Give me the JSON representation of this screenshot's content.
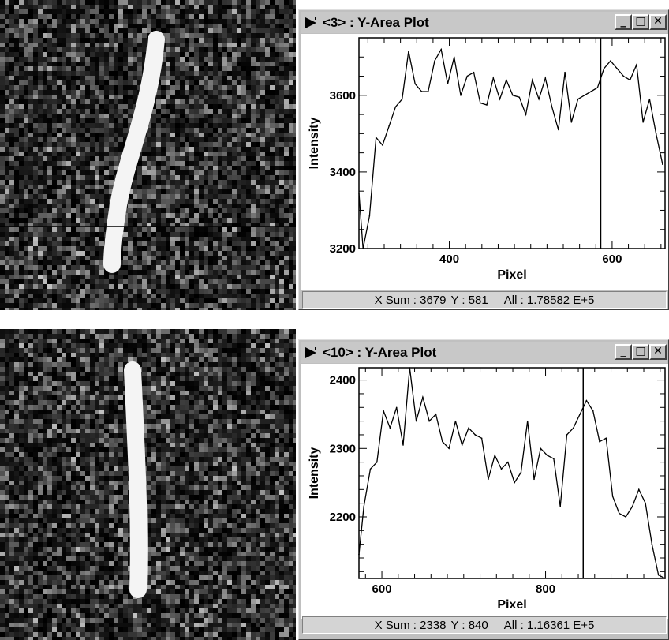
{
  "windows": [
    {
      "title": "<3> :  Y-Area Plot",
      "minimize_label": "_",
      "maximize_label": "□",
      "close_label": "✕",
      "status": {
        "xsum": "X Sum : 3679",
        "y": "Y : 581",
        "all": "All : 1.78582 E+5"
      },
      "cursor_x": 586,
      "chart_data": {
        "type": "line",
        "xlabel": "Pixel",
        "ylabel": "Intensity",
        "xlim": [
          289,
          665
        ],
        "ylim": [
          3200,
          3750
        ],
        "xticks": [
          400,
          600
        ],
        "yticks": [
          3200,
          3400,
          3600
        ],
        "x": [
          289,
          294,
          302,
          310,
          318,
          326,
          334,
          342,
          350,
          358,
          366,
          374,
          382,
          390,
          398,
          406,
          414,
          422,
          430,
          438,
          446,
          454,
          462,
          470,
          478,
          486,
          494,
          502,
          510,
          518,
          526,
          534,
          542,
          550,
          558,
          566,
          574,
          582,
          590,
          598,
          606,
          614,
          622,
          630,
          638,
          646,
          654,
          662
        ],
        "values": [
          3345,
          3200,
          3285,
          3490,
          3470,
          3520,
          3570,
          3590,
          3715,
          3630,
          3610,
          3610,
          3690,
          3720,
          3630,
          3700,
          3600,
          3650,
          3660,
          3580,
          3575,
          3645,
          3590,
          3640,
          3600,
          3595,
          3550,
          3640,
          3590,
          3645,
          3570,
          3510,
          3660,
          3530,
          3590,
          3600,
          3610,
          3620,
          3670,
          3690,
          3670,
          3650,
          3640,
          3680,
          3530,
          3590,
          3500,
          3420
        ]
      }
    },
    {
      "title": "<10> :  Y-Area Plot",
      "minimize_label": "_",
      "maximize_label": "□",
      "close_label": "✕",
      "status": {
        "xsum": "X Sum : 2338",
        "y": "Y : 840",
        "all": "All : 1.16361 E+5"
      },
      "cursor_x": 846,
      "chart_data": {
        "type": "line",
        "xlabel": "Pixel",
        "ylabel": "Intensity",
        "xlim": [
          572,
          946
        ],
        "ylim": [
          2110,
          2418
        ],
        "xticks": [
          600,
          800
        ],
        "yticks": [
          2200,
          2300,
          2400
        ],
        "x": [
          572,
          578,
          586,
          594,
          602,
          610,
          618,
          626,
          634,
          642,
          650,
          658,
          666,
          674,
          682,
          690,
          698,
          706,
          714,
          722,
          730,
          738,
          746,
          754,
          762,
          770,
          778,
          786,
          794,
          802,
          810,
          818,
          826,
          834,
          842,
          850,
          858,
          866,
          874,
          882,
          890,
          898,
          906,
          914,
          922,
          930,
          938,
          946
        ],
        "values": [
          2145,
          2215,
          2270,
          2280,
          2355,
          2330,
          2360,
          2305,
          2418,
          2340,
          2375,
          2340,
          2350,
          2310,
          2300,
          2340,
          2305,
          2330,
          2320,
          2315,
          2255,
          2290,
          2270,
          2280,
          2250,
          2265,
          2340,
          2255,
          2300,
          2290,
          2285,
          2215,
          2320,
          2330,
          2350,
          2370,
          2355,
          2310,
          2315,
          2230,
          2205,
          2200,
          2215,
          2240,
          2220,
          2160,
          2115,
          2110
        ]
      }
    }
  ]
}
